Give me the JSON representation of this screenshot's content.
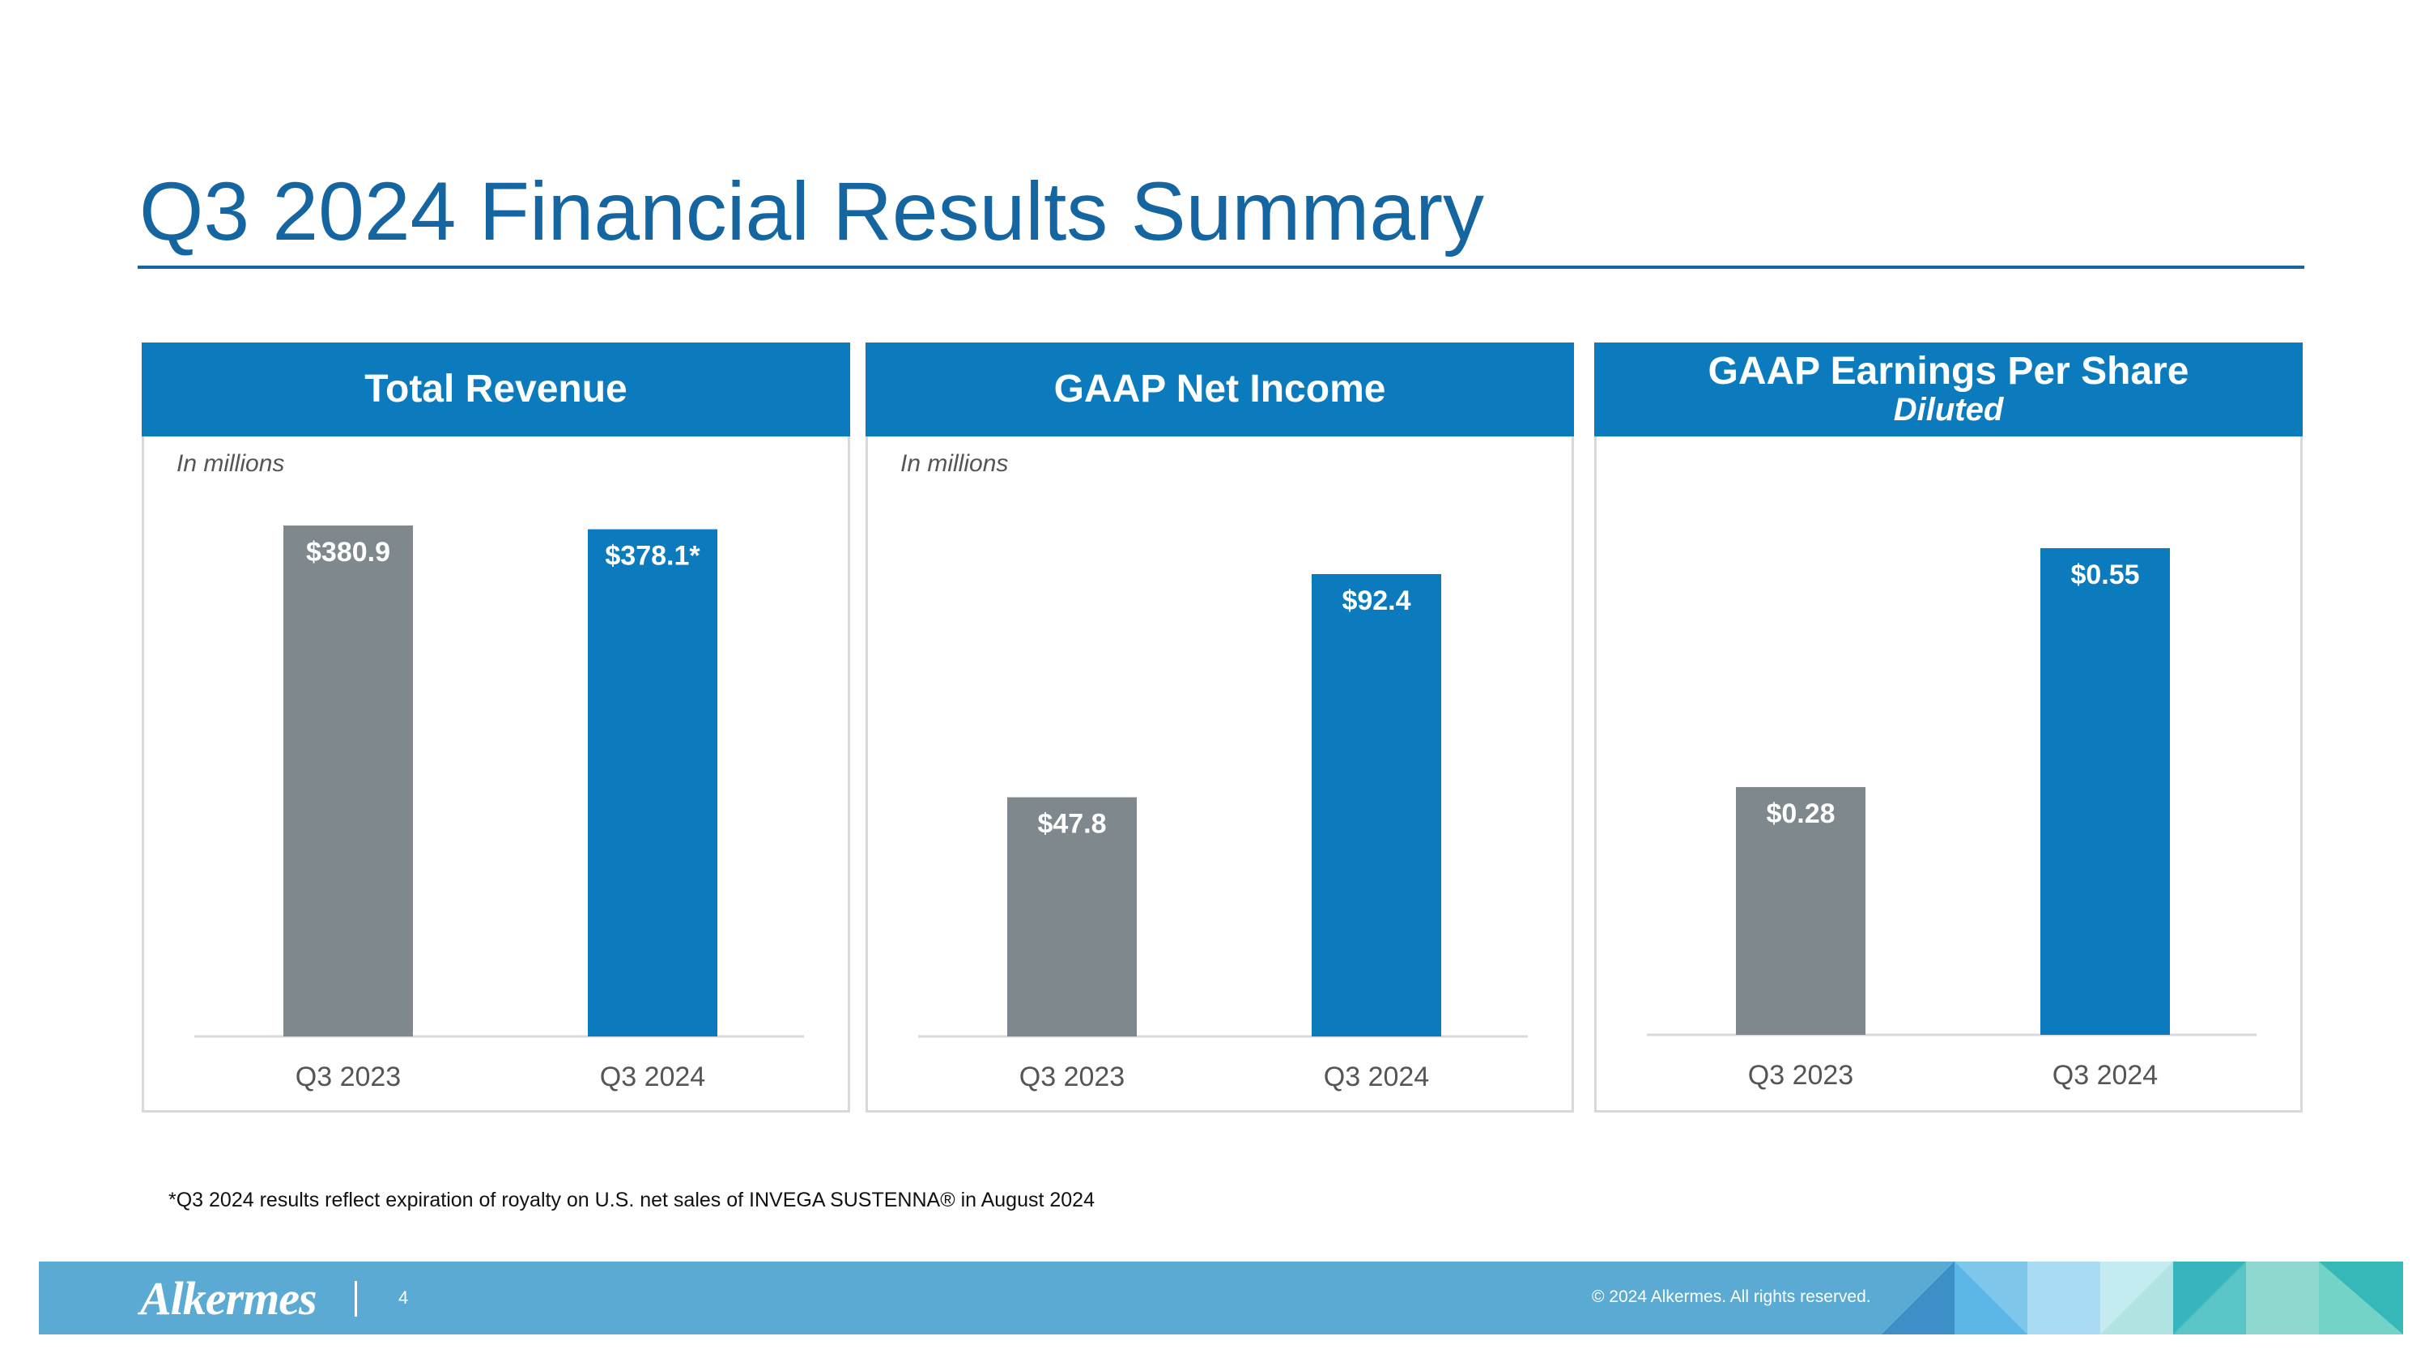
{
  "title": "Q3 2024 Financial Results Summary",
  "footnote": "*Q3 2024 results reflect expiration of royalty on U.S. net sales of INVEGA SUSTENNA® in August 2024",
  "footer": {
    "logo_text": "Alkermes",
    "page_number": "4",
    "copyright": "© 2024 Alkermes. All rights reserved."
  },
  "colors": {
    "title": "#1565a0",
    "header": "#0c7bbd",
    "bar_prior": "#7f888c",
    "bar_current": "#0c7bbd",
    "footer": "#5aaad3"
  },
  "panels": [
    {
      "header": "Total Revenue",
      "subheader": "",
      "units": "In millions"
    },
    {
      "header": "GAAP Net Income",
      "subheader": "",
      "units": "In millions"
    },
    {
      "header": "GAAP Earnings Per Share",
      "subheader": "Diluted",
      "units": ""
    }
  ],
  "chart_data": [
    {
      "type": "bar",
      "title": "Total Revenue",
      "ylabel": "In millions",
      "categories": [
        "Q3 2023",
        "Q3 2024"
      ],
      "values": [
        380.9,
        378.1
      ],
      "value_labels": [
        "$380.9",
        "$378.1*"
      ],
      "ylim": [
        0,
        380.9
      ]
    },
    {
      "type": "bar",
      "title": "GAAP Net Income",
      "ylabel": "In millions",
      "categories": [
        "Q3 2023",
        "Q3 2024"
      ],
      "values": [
        47.8,
        92.4
      ],
      "value_labels": [
        "$47.8",
        "$92.4"
      ],
      "ylim": [
        0,
        92.4
      ]
    },
    {
      "type": "bar",
      "title": "GAAP Earnings Per Share Diluted",
      "ylabel": "",
      "categories": [
        "Q3 2023",
        "Q3 2024"
      ],
      "values": [
        0.28,
        0.55
      ],
      "value_labels": [
        "$0.28",
        "$0.55"
      ],
      "ylim": [
        0,
        0.55
      ]
    }
  ]
}
